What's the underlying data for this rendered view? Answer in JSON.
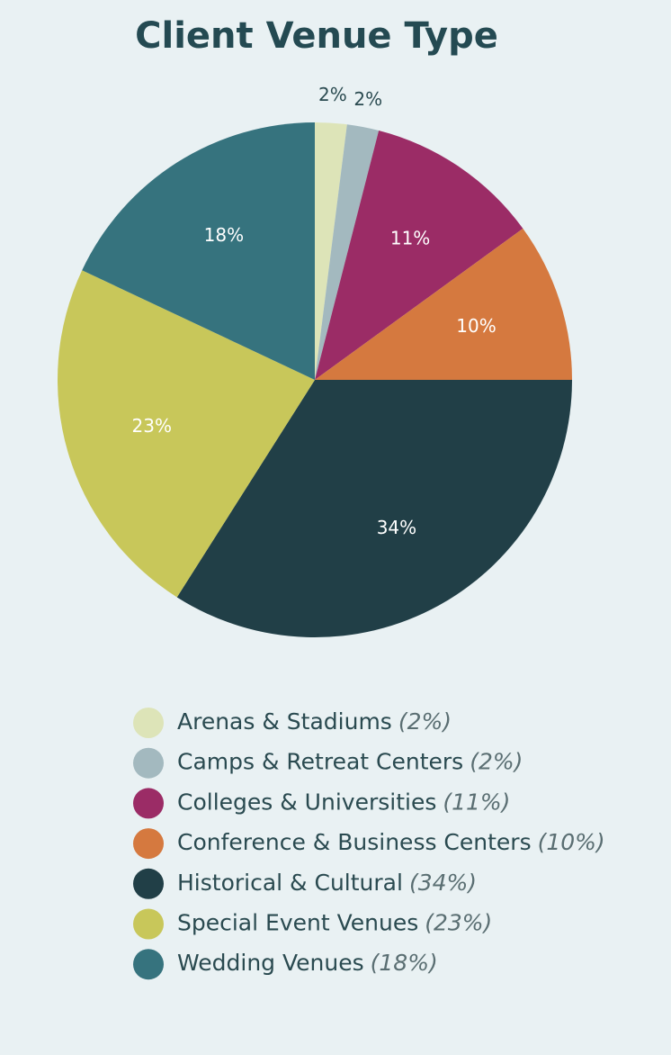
{
  "chart_data": {
    "type": "pie",
    "title": "Client Venue Type",
    "categories": [
      "Arenas & Stadiums",
      "Camps & Retreat Centers",
      "Colleges & Universities",
      "Conference & Business Centers",
      "Historical & Cultural",
      "Special Event Venues",
      "Wedding Venues"
    ],
    "values": [
      2,
      2,
      11,
      10,
      34,
      23,
      18
    ],
    "value_labels": [
      "2%",
      "2%",
      "11%",
      "10%",
      "34%",
      "23%",
      "18%"
    ],
    "legend_value_labels": [
      "(2%)",
      "(2%)",
      "(11%)",
      "(10%)",
      "(34%)",
      "(23%)",
      "(18%)"
    ],
    "colors": [
      "#dde4b8",
      "#a3b9bf",
      "#9b2c66",
      "#d5793f",
      "#213f47",
      "#c8c75a",
      "#36737e"
    ]
  }
}
